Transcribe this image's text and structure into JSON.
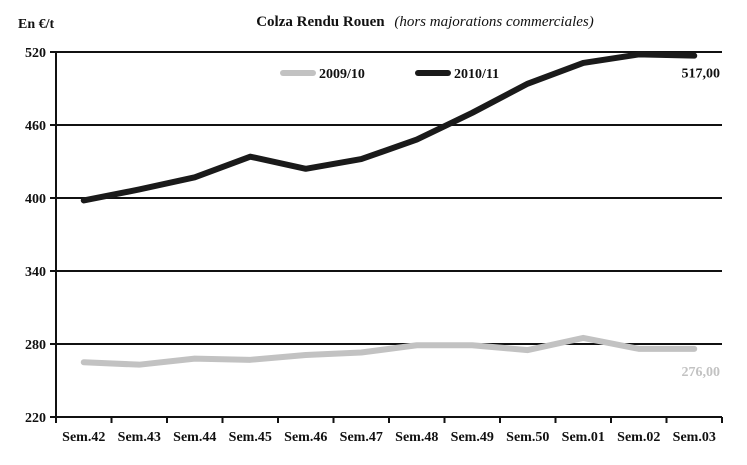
{
  "chart_data": {
    "type": "line",
    "title": "Colza Rendu Rouen",
    "subtitle": "(hors majorations commerciales)",
    "ylabel": "En €/t",
    "xlabel": "",
    "ylim": [
      220,
      520
    ],
    "yticks": [
      220,
      280,
      340,
      400,
      460,
      520
    ],
    "grid": "horizontal",
    "legend_position": "top",
    "categories": [
      "Sem.42",
      "Sem.43",
      "Sem.44",
      "Sem.45",
      "Sem.46",
      "Sem.47",
      "Sem.48",
      "Sem.49",
      "Sem.50",
      "Sem.01",
      "Sem.02",
      "Sem.03"
    ],
    "series": [
      {
        "name": "2009/10",
        "color": "#c2c2c2",
        "values": [
          265,
          263,
          268,
          267,
          271,
          273,
          279,
          279,
          275,
          285,
          276,
          276
        ],
        "end_label": "276,00"
      },
      {
        "name": "2010/11",
        "color": "#1a1a1a",
        "values": [
          398,
          407,
          417,
          434,
          424,
          432,
          448,
          470,
          494,
          511,
          518,
          517
        ],
        "end_label": "517,00"
      }
    ]
  }
}
